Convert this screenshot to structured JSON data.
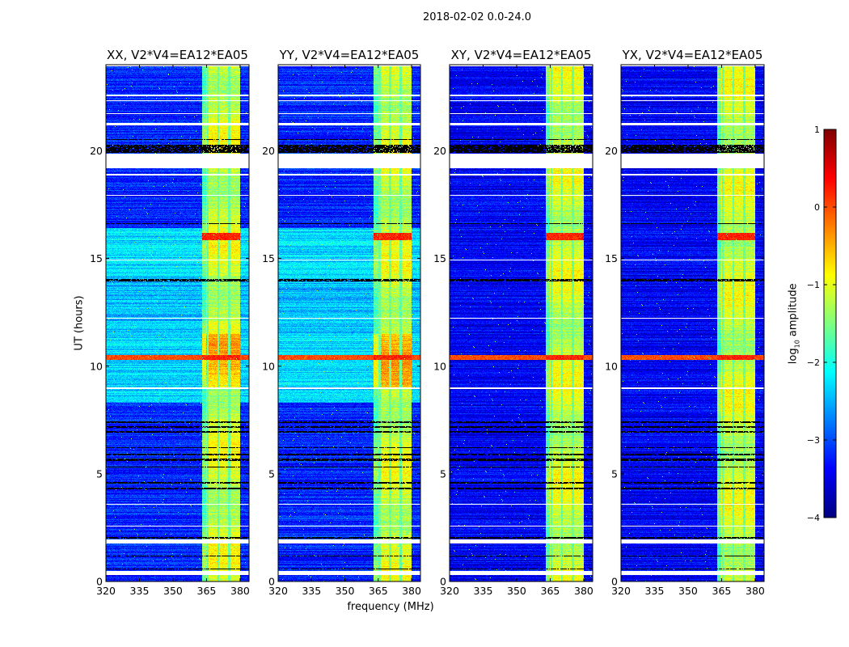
{
  "chart_data": {
    "type": "heatmap",
    "title": "2018-02-02 0.0-24.0",
    "xlabel": "frequency (MHz)",
    "ylabel": "UT (hours)",
    "xlim": [
      320,
      384
    ],
    "ylim": [
      0,
      24
    ],
    "xticks": [
      "320",
      "335",
      "350",
      "365",
      "380"
    ],
    "xtick_values": [
      320,
      335,
      350,
      365,
      380
    ],
    "yticks": [
      "0",
      "5",
      "10",
      "15",
      "20"
    ],
    "ytick_values": [
      0,
      5,
      10,
      15,
      20
    ],
    "panels": [
      {
        "title": "XX, V2*V4=EA12*EA05",
        "pol": "parallel"
      },
      {
        "title": "YY, V2*V4=EA12*EA05",
        "pol": "parallel"
      },
      {
        "title": "XY, V2*V4=EA12*EA05",
        "pol": "cross"
      },
      {
        "title": "YX, V2*V4=EA12*EA05",
        "pol": "cross"
      }
    ],
    "colorbar": {
      "label_main": "log",
      "label_sub": "10",
      "label_tail": " amplitude",
      "colormap": "jet",
      "range": [
        -4,
        1
      ],
      "ticks": [
        "1",
        "0",
        "−1",
        "−2",
        "−3",
        "−4"
      ],
      "tick_values": [
        1,
        0,
        -1,
        -2,
        -3,
        -4
      ]
    },
    "features": {
      "bright_band_mhz": [
        363,
        380
      ],
      "band_gaps_mhz": [
        365.6,
        370.3,
        375.1
      ],
      "background_level_parallel": -3.2,
      "background_level_cross": -3.4,
      "elevated_period_parallel_hours": [
        8.3,
        16.4
      ],
      "strong_rfi_rows_hours": [
        [
          10.3,
          10.5
        ],
        [
          15.85,
          16.2
        ]
      ],
      "flagged_white_rows_hours": [
        [
          0.3,
          0.5
        ],
        [
          1.75,
          1.95
        ],
        [
          2.55,
          2.6
        ],
        [
          3.55,
          3.6
        ],
        [
          8.95,
          9.02
        ],
        [
          12.2,
          12.25
        ],
        [
          14.9,
          14.95
        ],
        [
          17.9,
          17.95
        ],
        [
          18.85,
          18.92
        ],
        [
          19.2,
          19.85
        ],
        [
          21.2,
          21.3
        ],
        [
          21.7,
          21.75
        ],
        [
          22.3,
          22.35
        ],
        [
          22.55,
          22.6
        ],
        [
          23.92,
          24.0
        ]
      ],
      "flagged_black_rows_hours": [
        [
          0.55,
          0.6
        ],
        [
          1.15,
          1.2
        ],
        [
          2.0,
          2.05
        ],
        [
          4.3,
          4.35
        ],
        [
          4.55,
          4.62
        ],
        [
          5.3,
          5.35
        ],
        [
          5.6,
          5.7
        ],
        [
          5.85,
          5.92
        ],
        [
          6.2,
          6.25
        ],
        [
          6.9,
          7.0
        ],
        [
          7.15,
          7.2
        ],
        [
          7.35,
          7.45
        ],
        [
          13.95,
          14.05
        ],
        [
          16.6,
          16.65
        ],
        [
          19.9,
          20.3
        ],
        [
          20.5,
          20.55
        ]
      ]
    }
  }
}
